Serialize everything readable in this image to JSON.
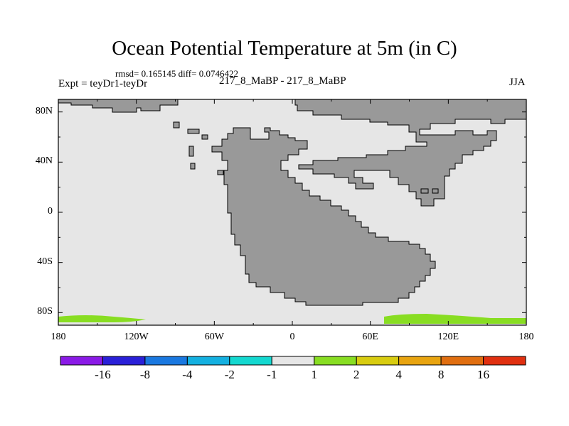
{
  "title": "Ocean Potential Temperature at 5m (in C)",
  "stats": "rmsd= 0.165145 diff= 0.0746422",
  "experiment": "Expt = teyDr1-teyDr",
  "subtitle": "217_8_MaBP - 217_8_MaBP",
  "season": "JJA",
  "map": {
    "lon_range": [
      -180,
      180
    ],
    "lat_range": [
      -90,
      90
    ],
    "land_color": "#999999",
    "ocean_color": "#e6e6e6",
    "anomaly_color": "#88dd22",
    "y_ticks": [
      {
        "lat": 80,
        "label": "80N"
      },
      {
        "lat": 40,
        "label": "40N"
      },
      {
        "lat": 0,
        "label": "0"
      },
      {
        "lat": -40,
        "label": "40S"
      },
      {
        "lat": -80,
        "label": "80S"
      }
    ],
    "x_ticks": [
      {
        "lon": -180,
        "label": "180"
      },
      {
        "lon": -120,
        "label": "120W"
      },
      {
        "lon": -60,
        "label": "60W"
      },
      {
        "lon": 0,
        "label": "0"
      },
      {
        "lon": 60,
        "label": "60E"
      },
      {
        "lon": 120,
        "label": "120E"
      },
      {
        "lon": 180,
        "label": "180"
      }
    ]
  },
  "colorbar": {
    "colors": [
      "#8a1ae6",
      "#2a20d8",
      "#1a78e0",
      "#14b0e0",
      "#14d8d0",
      "#e6e6e6",
      "#88dd22",
      "#d8cc10",
      "#e8a410",
      "#e06e10",
      "#e03010"
    ],
    "labels": [
      "-16",
      "-8",
      "-4",
      "-2",
      "-1",
      "1",
      "2",
      "4",
      "8",
      "16"
    ]
  }
}
